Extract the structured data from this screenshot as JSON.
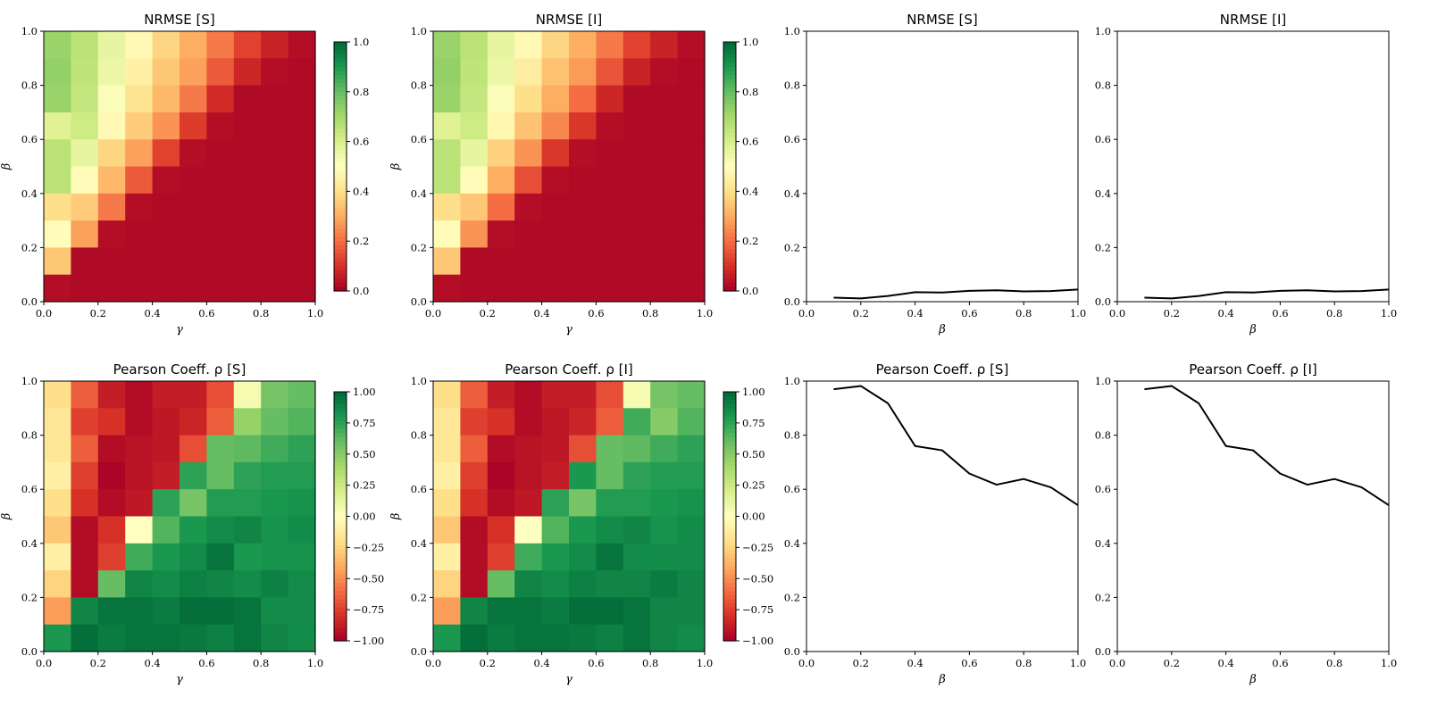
{
  "chart_data": [
    {
      "type": "heatmap",
      "title": "NRMSE [S]",
      "xlabel": "γ",
      "ylabel": "β",
      "xlim": [
        0,
        1
      ],
      "ylim": [
        0,
        1
      ],
      "x_ticks": [
        "0.0",
        "0.2",
        "0.4",
        "0.6",
        "0.8",
        "1.0"
      ],
      "y_ticks": [
        "0.0",
        "0.2",
        "0.4",
        "0.6",
        "0.8",
        "1.0"
      ],
      "colorbar": {
        "colormap": "RdYlGn_r",
        "range": [
          0,
          1
        ],
        "ticks": [
          "0.0",
          "0.2",
          "0.4",
          "0.6",
          "0.8",
          "1.0"
        ]
      },
      "grid_note": "rows listed from β=1.0 (top) to β=0.0 (bottom); columns γ=0.0…1.0",
      "values": [
        [
          0.72,
          0.66,
          0.56,
          0.48,
          0.38,
          0.3,
          0.22,
          0.13,
          0.07,
          0.03
        ],
        [
          0.73,
          0.65,
          0.55,
          0.45,
          0.35,
          0.28,
          0.17,
          0.08,
          0.03,
          0.02
        ],
        [
          0.72,
          0.64,
          0.51,
          0.41,
          0.32,
          0.22,
          0.09,
          0.02,
          0.02,
          0.02
        ],
        [
          0.58,
          0.62,
          0.48,
          0.36,
          0.26,
          0.12,
          0.03,
          0.02,
          0.02,
          0.02
        ],
        [
          0.66,
          0.56,
          0.38,
          0.28,
          0.13,
          0.03,
          0.02,
          0.02,
          0.02,
          0.02
        ],
        [
          0.66,
          0.49,
          0.32,
          0.17,
          0.03,
          0.02,
          0.02,
          0.02,
          0.02,
          0.02
        ],
        [
          0.4,
          0.36,
          0.22,
          0.03,
          0.02,
          0.02,
          0.02,
          0.02,
          0.02,
          0.02
        ],
        [
          0.49,
          0.28,
          0.03,
          0.02,
          0.02,
          0.02,
          0.02,
          0.02,
          0.02,
          0.02
        ],
        [
          0.35,
          0.02,
          0.02,
          0.02,
          0.02,
          0.02,
          0.02,
          0.02,
          0.02,
          0.02
        ],
        [
          0.03,
          0.02,
          0.02,
          0.02,
          0.02,
          0.02,
          0.02,
          0.02,
          0.02,
          0.02
        ]
      ]
    },
    {
      "type": "heatmap",
      "title": "NRMSE [I]",
      "xlabel": "γ",
      "ylabel": "β",
      "xlim": [
        0,
        1
      ],
      "ylim": [
        0,
        1
      ],
      "x_ticks": [
        "0.0",
        "0.2",
        "0.4",
        "0.6",
        "0.8",
        "1.0"
      ],
      "y_ticks": [
        "0.0",
        "0.2",
        "0.4",
        "0.6",
        "0.8",
        "1.0"
      ],
      "colorbar": {
        "colormap": "RdYlGn_r",
        "range": [
          0,
          1
        ],
        "ticks": [
          "0.0",
          "0.2",
          "0.4",
          "0.6",
          "0.8",
          "1.0"
        ]
      },
      "values": [
        [
          0.72,
          0.66,
          0.56,
          0.48,
          0.38,
          0.3,
          0.22,
          0.13,
          0.07,
          0.03
        ],
        [
          0.73,
          0.65,
          0.55,
          0.44,
          0.34,
          0.27,
          0.16,
          0.07,
          0.03,
          0.02
        ],
        [
          0.72,
          0.64,
          0.51,
          0.4,
          0.3,
          0.2,
          0.08,
          0.02,
          0.02,
          0.02
        ],
        [
          0.58,
          0.62,
          0.47,
          0.34,
          0.24,
          0.11,
          0.03,
          0.02,
          0.02,
          0.02
        ],
        [
          0.66,
          0.56,
          0.37,
          0.26,
          0.11,
          0.03,
          0.02,
          0.02,
          0.02,
          0.02
        ],
        [
          0.66,
          0.49,
          0.3,
          0.15,
          0.03,
          0.02,
          0.02,
          0.02,
          0.02,
          0.02
        ],
        [
          0.4,
          0.35,
          0.2,
          0.03,
          0.02,
          0.02,
          0.02,
          0.02,
          0.02,
          0.02
        ],
        [
          0.49,
          0.26,
          0.03,
          0.02,
          0.02,
          0.02,
          0.02,
          0.02,
          0.02,
          0.02
        ],
        [
          0.35,
          0.02,
          0.02,
          0.02,
          0.02,
          0.02,
          0.02,
          0.02,
          0.02,
          0.02
        ],
        [
          0.03,
          0.02,
          0.02,
          0.02,
          0.02,
          0.02,
          0.02,
          0.02,
          0.02,
          0.02
        ]
      ]
    },
    {
      "type": "line",
      "title": "NRMSE [S]",
      "xlabel": "β",
      "ylabel": "",
      "xlim": [
        0,
        1
      ],
      "ylim": [
        0,
        1
      ],
      "x_ticks": [
        "0.0",
        "0.2",
        "0.4",
        "0.6",
        "0.8",
        "1.0"
      ],
      "y_ticks": [
        "0.0",
        "0.2",
        "0.4",
        "0.6",
        "0.8",
        "1.0"
      ],
      "x": [
        0.1,
        0.2,
        0.3,
        0.4,
        0.5,
        0.6,
        0.7,
        0.8,
        0.9,
        1.0
      ],
      "y": [
        0.015,
        0.012,
        0.021,
        0.035,
        0.034,
        0.04,
        0.042,
        0.038,
        0.039,
        0.045
      ]
    },
    {
      "type": "line",
      "title": "NRMSE [I]",
      "xlabel": "β",
      "ylabel": "",
      "xlim": [
        0,
        1
      ],
      "ylim": [
        0,
        1
      ],
      "x_ticks": [
        "0.0",
        "0.2",
        "0.4",
        "0.6",
        "0.8",
        "1.0"
      ],
      "y_ticks": [
        "0.0",
        "0.2",
        "0.4",
        "0.6",
        "0.8",
        "1.0"
      ],
      "x": [
        0.1,
        0.2,
        0.3,
        0.4,
        0.5,
        0.6,
        0.7,
        0.8,
        0.9,
        1.0
      ],
      "y": [
        0.015,
        0.012,
        0.021,
        0.035,
        0.034,
        0.04,
        0.042,
        0.038,
        0.039,
        0.045
      ]
    },
    {
      "type": "heatmap",
      "title": "Pearson Coeff. ρ [S]",
      "xlabel": "γ",
      "ylabel": "β",
      "xlim": [
        0,
        1
      ],
      "ylim": [
        0,
        1
      ],
      "x_ticks": [
        "0.0",
        "0.2",
        "0.4",
        "0.6",
        "0.8",
        "1.0"
      ],
      "y_ticks": [
        "0.0",
        "0.2",
        "0.4",
        "0.6",
        "0.8",
        "1.0"
      ],
      "colorbar": {
        "colormap": "RdYlGn",
        "range": [
          -1,
          1
        ],
        "ticks": [
          "1.00",
          "0.75",
          "0.50",
          "0.25",
          "0.00",
          "−0.25",
          "−0.50",
          "−0.75",
          "−1.00"
        ]
      },
      "values": [
        [
          -0.2,
          -0.65,
          -0.88,
          -0.95,
          -0.88,
          -0.88,
          -0.7,
          0.05,
          0.55,
          0.6
        ],
        [
          -0.15,
          -0.75,
          -0.8,
          -0.95,
          -0.9,
          -0.85,
          -0.65,
          0.45,
          0.6,
          0.65
        ],
        [
          -0.15,
          -0.65,
          -0.95,
          -0.92,
          -0.9,
          -0.7,
          0.6,
          0.62,
          0.7,
          0.75
        ],
        [
          -0.1,
          -0.75,
          -0.98,
          -0.92,
          -0.88,
          0.75,
          0.6,
          0.75,
          0.78,
          0.78
        ],
        [
          -0.2,
          -0.8,
          -0.95,
          -0.9,
          0.75,
          0.55,
          0.78,
          0.78,
          0.8,
          0.82
        ],
        [
          -0.3,
          -0.95,
          -0.8,
          0.0,
          0.65,
          0.8,
          0.85,
          0.88,
          0.82,
          0.85
        ],
        [
          -0.1,
          -0.95,
          -0.75,
          0.7,
          0.8,
          0.85,
          0.95,
          0.8,
          0.82,
          0.82
        ],
        [
          -0.25,
          -0.95,
          0.6,
          0.88,
          0.85,
          0.9,
          0.88,
          0.85,
          0.9,
          0.85
        ],
        [
          -0.45,
          0.88,
          0.95,
          0.95,
          0.92,
          0.97,
          0.97,
          0.95,
          0.85,
          0.85
        ],
        [
          0.8,
          0.97,
          0.92,
          0.95,
          0.95,
          0.93,
          0.9,
          0.95,
          0.88,
          0.85
        ]
      ]
    },
    {
      "type": "heatmap",
      "title": "Pearson Coeff. ρ [I]",
      "xlabel": "γ",
      "ylabel": "β",
      "xlim": [
        0,
        1
      ],
      "ylim": [
        0,
        1
      ],
      "x_ticks": [
        "0.0",
        "0.2",
        "0.4",
        "0.6",
        "0.8",
        "1.0"
      ],
      "y_ticks": [
        "0.0",
        "0.2",
        "0.4",
        "0.6",
        "0.8",
        "1.0"
      ],
      "colorbar": {
        "colormap": "RdYlGn",
        "range": [
          -1,
          1
        ],
        "ticks": [
          "1.00",
          "0.75",
          "0.50",
          "0.25",
          "0.00",
          "−0.25",
          "−0.50",
          "−0.75",
          "−1.00"
        ]
      },
      "values": [
        [
          -0.2,
          -0.65,
          -0.88,
          -0.95,
          -0.88,
          -0.88,
          -0.7,
          0.05,
          0.55,
          0.6
        ],
        [
          -0.15,
          -0.75,
          -0.8,
          -0.95,
          -0.9,
          -0.85,
          -0.65,
          0.7,
          0.5,
          0.65
        ],
        [
          -0.15,
          -0.65,
          -0.95,
          -0.92,
          -0.9,
          -0.7,
          0.6,
          0.62,
          0.7,
          0.75
        ],
        [
          -0.1,
          -0.75,
          -0.98,
          -0.92,
          -0.88,
          0.8,
          0.6,
          0.75,
          0.78,
          0.78
        ],
        [
          -0.2,
          -0.8,
          -0.95,
          -0.9,
          0.75,
          0.55,
          0.78,
          0.78,
          0.8,
          0.82
        ],
        [
          -0.3,
          -0.95,
          -0.8,
          0.0,
          0.65,
          0.8,
          0.85,
          0.88,
          0.82,
          0.85
        ],
        [
          -0.1,
          -0.95,
          -0.75,
          0.7,
          0.8,
          0.85,
          0.95,
          0.85,
          0.85,
          0.85
        ],
        [
          -0.25,
          -0.95,
          0.6,
          0.88,
          0.85,
          0.9,
          0.88,
          0.88,
          0.92,
          0.88
        ],
        [
          -0.45,
          0.88,
          0.95,
          0.95,
          0.92,
          0.97,
          0.97,
          0.95,
          0.88,
          0.88
        ],
        [
          0.8,
          0.97,
          0.92,
          0.95,
          0.95,
          0.93,
          0.9,
          0.95,
          0.88,
          0.85
        ]
      ]
    },
    {
      "type": "line",
      "title": "Pearson Coeff. ρ [S]",
      "xlabel": "β",
      "ylabel": "",
      "xlim": [
        0,
        1
      ],
      "ylim": [
        0,
        1
      ],
      "x_ticks": [
        "0.0",
        "0.2",
        "0.4",
        "0.6",
        "0.8",
        "1.0"
      ],
      "y_ticks": [
        "0.0",
        "0.2",
        "0.4",
        "0.6",
        "0.8",
        "1.0"
      ],
      "x": [
        0.1,
        0.2,
        0.3,
        0.4,
        0.5,
        0.6,
        0.7,
        0.8,
        0.9,
        1.0
      ],
      "y": [
        0.97,
        0.982,
        0.918,
        0.76,
        0.744,
        0.658,
        0.617,
        0.638,
        0.607,
        0.541
      ]
    },
    {
      "type": "line",
      "title": "Pearson Coeff. ρ [I]",
      "xlabel": "β",
      "ylabel": "",
      "xlim": [
        0,
        1
      ],
      "ylim": [
        0,
        1
      ],
      "x_ticks": [
        "0.0",
        "0.2",
        "0.4",
        "0.6",
        "0.8",
        "1.0"
      ],
      "y_ticks": [
        "0.0",
        "0.2",
        "0.4",
        "0.6",
        "0.8",
        "1.0"
      ],
      "x": [
        0.1,
        0.2,
        0.3,
        0.4,
        0.5,
        0.6,
        0.7,
        0.8,
        0.9,
        1.0
      ],
      "y": [
        0.97,
        0.982,
        0.918,
        0.76,
        0.744,
        0.658,
        0.617,
        0.638,
        0.607,
        0.541
      ]
    }
  ],
  "colors": {
    "line": "#000000",
    "axes": "#000000",
    "background": "#ffffff"
  }
}
